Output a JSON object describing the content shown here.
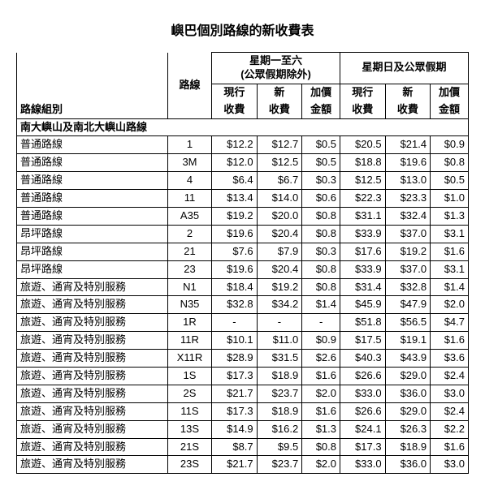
{
  "title": "嶼巴個別路線的新收費表",
  "headers": {
    "group": "路線組別",
    "route": "路線",
    "weekday_group": "星期一至六",
    "weekday_sub": "(公眾假期除外)",
    "holiday_group": "星期日及公眾假期",
    "current": "現行",
    "new": "新",
    "diff": "加價",
    "fare": "收費",
    "amount": "金額"
  },
  "section_label": "南大嶼山及南北大嶼山路線",
  "rows": [
    {
      "cat": "普通路線",
      "route": "1",
      "wc": "$12.2",
      "wn": "$12.7",
      "wd": "$0.5",
      "hc": "$20.5",
      "hn": "$21.4",
      "hd": "$0.9"
    },
    {
      "cat": "普通路線",
      "route": "3M",
      "wc": "$12.0",
      "wn": "$12.5",
      "wd": "$0.5",
      "hc": "$18.8",
      "hn": "$19.6",
      "hd": "$0.8"
    },
    {
      "cat": "普通路線",
      "route": "4",
      "wc": "$6.4",
      "wn": "$6.7",
      "wd": "$0.3",
      "hc": "$12.5",
      "hn": "$13.0",
      "hd": "$0.5"
    },
    {
      "cat": "普通路線",
      "route": "11",
      "wc": "$13.4",
      "wn": "$14.0",
      "wd": "$0.6",
      "hc": "$22.3",
      "hn": "$23.3",
      "hd": "$1.0"
    },
    {
      "cat": "普通路線",
      "route": "A35",
      "wc": "$19.2",
      "wn": "$20.0",
      "wd": "$0.8",
      "hc": "$31.1",
      "hn": "$32.4",
      "hd": "$1.3"
    },
    {
      "cat": "昂坪路線",
      "route": "2",
      "wc": "$19.6",
      "wn": "$20.4",
      "wd": "$0.8",
      "hc": "$33.9",
      "hn": "$37.0",
      "hd": "$3.1"
    },
    {
      "cat": "昂坪路線",
      "route": "21",
      "wc": "$7.6",
      "wn": "$7.9",
      "wd": "$0.3",
      "hc": "$17.6",
      "hn": "$19.2",
      "hd": "$1.6"
    },
    {
      "cat": "昂坪路線",
      "route": "23",
      "wc": "$19.6",
      "wn": "$20.4",
      "wd": "$0.8",
      "hc": "$33.9",
      "hn": "$37.0",
      "hd": "$3.1"
    },
    {
      "cat": "旅遊、通宵及特別服務",
      "route": "N1",
      "wc": "$18.4",
      "wn": "$19.2",
      "wd": "$0.8",
      "hc": "$31.4",
      "hn": "$32.8",
      "hd": "$1.4"
    },
    {
      "cat": "旅遊、通宵及特別服務",
      "route": "N35",
      "wc": "$32.8",
      "wn": "$34.2",
      "wd": "$1.4",
      "hc": "$45.9",
      "hn": "$47.9",
      "hd": "$2.0"
    },
    {
      "cat": "旅遊、通宵及特別服務",
      "route": "1R",
      "wc": "-",
      "wn": "-",
      "wd": "-",
      "hc": "$51.8",
      "hn": "$56.5",
      "hd": "$4.7"
    },
    {
      "cat": "旅遊、通宵及特別服務",
      "route": "11R",
      "wc": "$10.1",
      "wn": "$11.0",
      "wd": "$0.9",
      "hc": "$17.5",
      "hn": "$19.1",
      "hd": "$1.6"
    },
    {
      "cat": "旅遊、通宵及特別服務",
      "route": "X11R",
      "wc": "$28.9",
      "wn": "$31.5",
      "wd": "$2.6",
      "hc": "$40.3",
      "hn": "$43.9",
      "hd": "$3.6"
    },
    {
      "cat": "旅遊、通宵及特別服務",
      "route": "1S",
      "wc": "$17.3",
      "wn": "$18.9",
      "wd": "$1.6",
      "hc": "$26.6",
      "hn": "$29.0",
      "hd": "$2.4"
    },
    {
      "cat": "旅遊、通宵及特別服務",
      "route": "2S",
      "wc": "$21.7",
      "wn": "$23.7",
      "wd": "$2.0",
      "hc": "$33.0",
      "hn": "$36.0",
      "hd": "$3.0"
    },
    {
      "cat": "旅遊、通宵及特別服務",
      "route": "11S",
      "wc": "$17.3",
      "wn": "$18.9",
      "wd": "$1.6",
      "hc": "$26.6",
      "hn": "$29.0",
      "hd": "$2.4"
    },
    {
      "cat": "旅遊、通宵及特別服務",
      "route": "13S",
      "wc": "$14.9",
      "wn": "$16.2",
      "wd": "$1.3",
      "hc": "$24.1",
      "hn": "$26.3",
      "hd": "$2.2"
    },
    {
      "cat": "旅遊、通宵及特別服務",
      "route": "21S",
      "wc": "$8.7",
      "wn": "$9.5",
      "wd": "$0.8",
      "hc": "$17.3",
      "hn": "$18.9",
      "hd": "$1.6"
    },
    {
      "cat": "旅遊、通宵及特別服務",
      "route": "23S",
      "wc": "$21.7",
      "wn": "$23.7",
      "wd": "$2.0",
      "hc": "$33.0",
      "hn": "$36.0",
      "hd": "$3.0"
    }
  ],
  "style": {
    "border_color": "#000000",
    "background_color": "#ffffff",
    "font_size_body": 13,
    "font_size_title": 16
  }
}
